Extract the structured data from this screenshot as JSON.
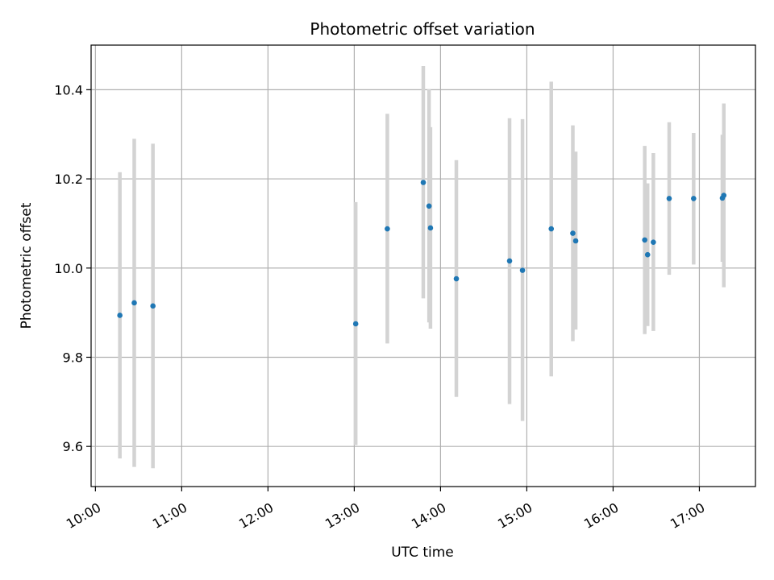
{
  "chart_data": {
    "type": "scatter",
    "title": "Photometric offset variation",
    "xlabel": "UTC time",
    "ylabel": "Photometric offset",
    "x_ticks": [
      "10:00",
      "11:00",
      "12:00",
      "13:00",
      "14:00",
      "15:00",
      "16:00",
      "17:00"
    ],
    "y_ticks": [
      9.6,
      9.8,
      10.0,
      10.2,
      10.4
    ],
    "xlim": [
      "09:57",
      "17:39"
    ],
    "ylim": [
      9.51,
      10.5
    ],
    "grid": true,
    "colors": {
      "point": "#1f77b4",
      "errorbar": "#d3d3d3"
    },
    "points": [
      {
        "x": "10:17",
        "y": 9.894,
        "lo": 9.573,
        "hi": 10.215
      },
      {
        "x": "10:27",
        "y": 9.922,
        "lo": 9.554,
        "hi": 10.29
      },
      {
        "x": "10:40",
        "y": 9.915,
        "lo": 9.551,
        "hi": 10.279
      },
      {
        "x": "13:01",
        "y": 9.875,
        "lo": 9.603,
        "hi": 10.148
      },
      {
        "x": "13:23",
        "y": 10.088,
        "lo": 9.831,
        "hi": 10.346
      },
      {
        "x": "13:48",
        "y": 10.192,
        "lo": 9.932,
        "hi": 10.453
      },
      {
        "x": "13:52",
        "y": 10.139,
        "lo": 9.878,
        "hi": 10.401
      },
      {
        "x": "13:53",
        "y": 10.09,
        "lo": 9.864,
        "hi": 10.316
      },
      {
        "x": "14:11",
        "y": 9.976,
        "lo": 9.711,
        "hi": 10.242
      },
      {
        "x": "14:48",
        "y": 10.016,
        "lo": 9.695,
        "hi": 10.336
      },
      {
        "x": "14:57",
        "y": 9.995,
        "lo": 9.657,
        "hi": 10.334
      },
      {
        "x": "15:17",
        "y": 10.088,
        "lo": 9.757,
        "hi": 10.418
      },
      {
        "x": "15:32",
        "y": 10.078,
        "lo": 9.836,
        "hi": 10.32
      },
      {
        "x": "15:34",
        "y": 10.061,
        "lo": 9.862,
        "hi": 10.261
      },
      {
        "x": "16:22",
        "y": 10.063,
        "lo": 9.852,
        "hi": 10.274
      },
      {
        "x": "16:24",
        "y": 10.03,
        "lo": 9.87,
        "hi": 10.19
      },
      {
        "x": "16:28",
        "y": 10.058,
        "lo": 9.859,
        "hi": 10.258
      },
      {
        "x": "16:39",
        "y": 10.156,
        "lo": 9.985,
        "hi": 10.327
      },
      {
        "x": "16:56",
        "y": 10.156,
        "lo": 10.008,
        "hi": 10.303
      },
      {
        "x": "17:16",
        "y": 10.157,
        "lo": 10.014,
        "hi": 10.299
      },
      {
        "x": "17:17",
        "y": 10.163,
        "lo": 9.957,
        "hi": 10.369
      }
    ]
  }
}
